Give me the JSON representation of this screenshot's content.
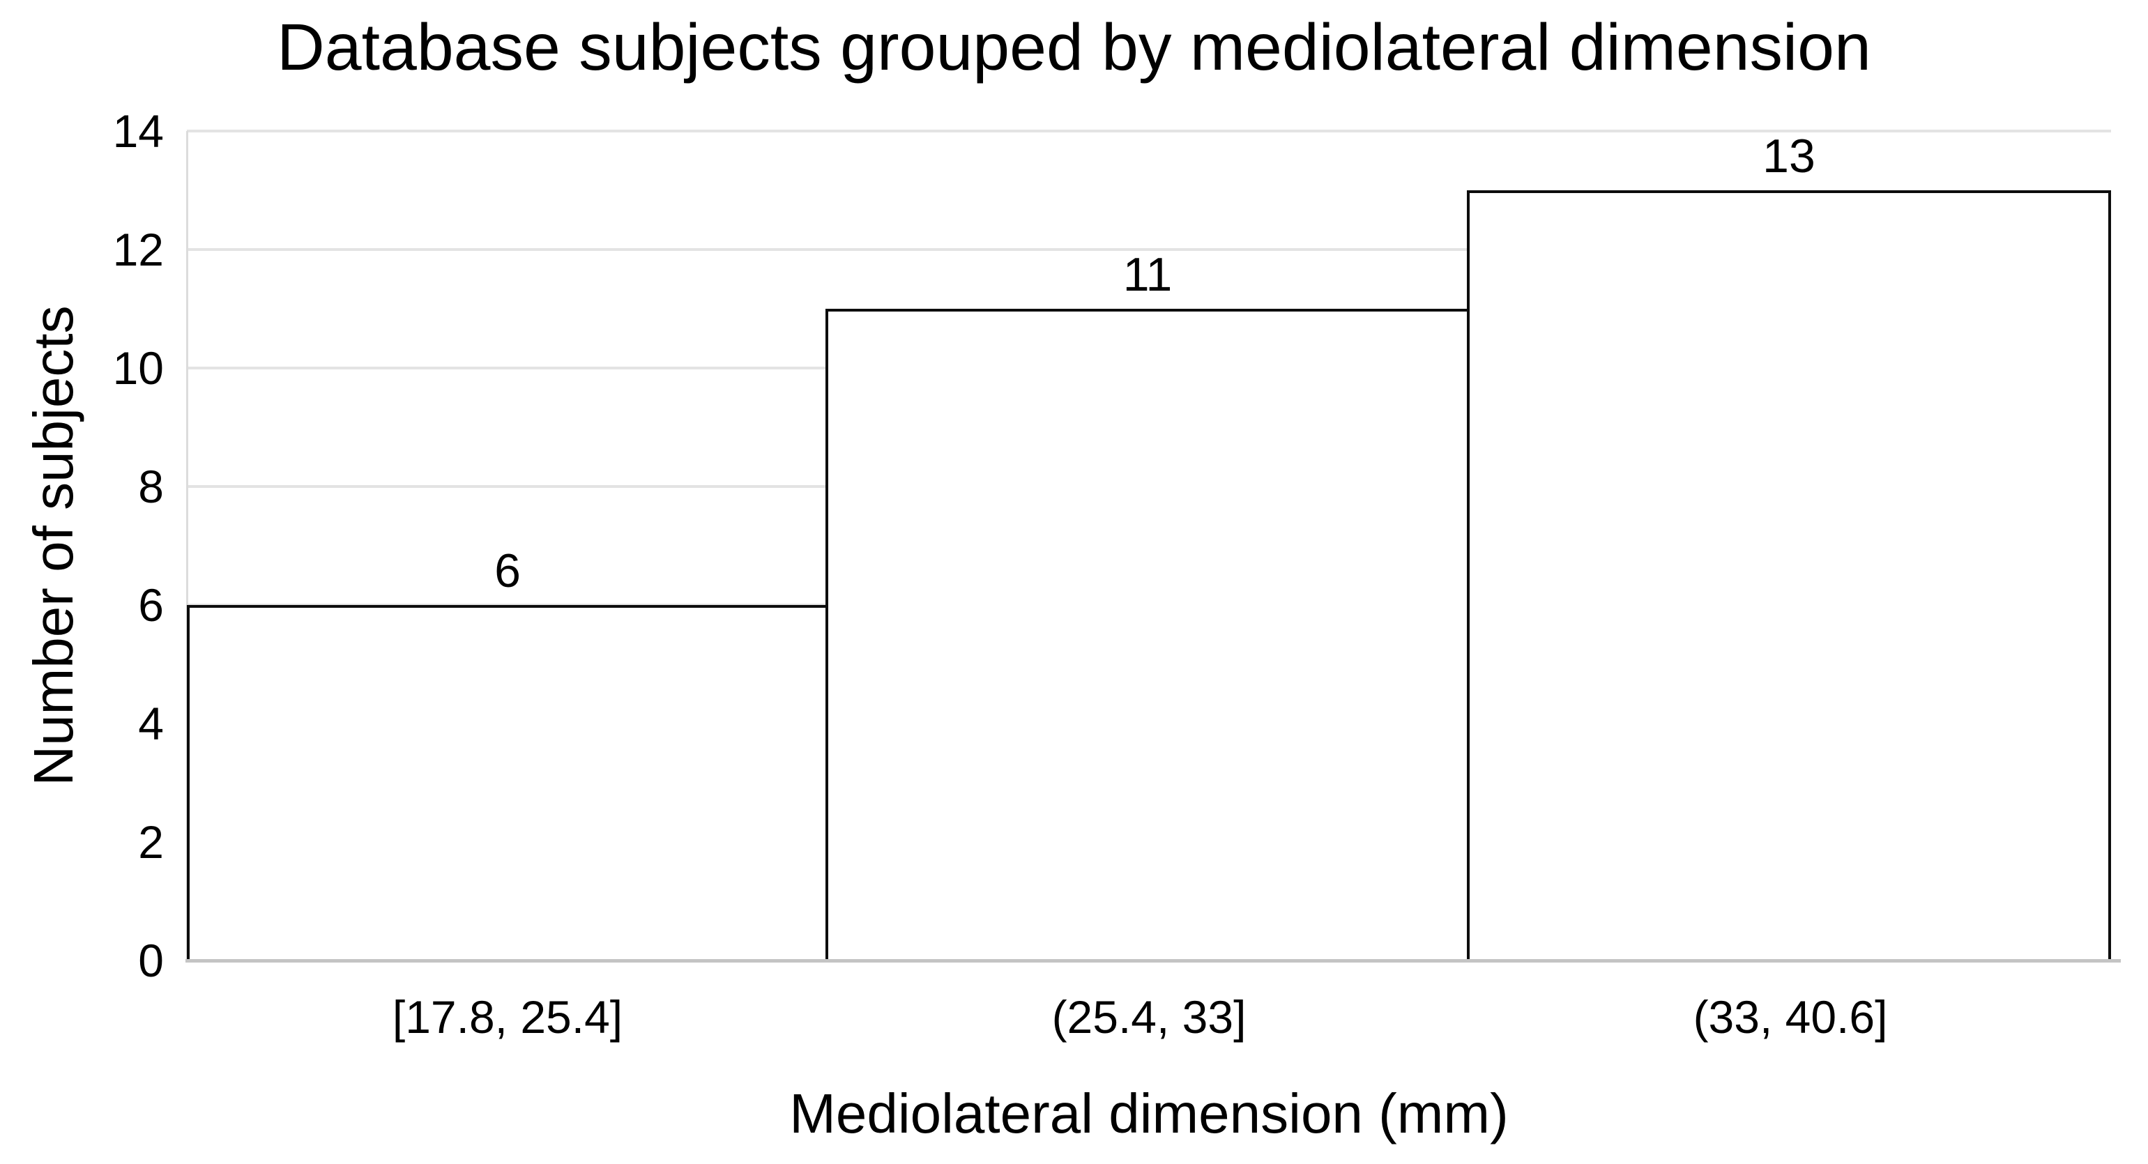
{
  "chart_data": {
    "type": "bar",
    "style": "histogram",
    "title": "Database subjects grouped by mediolateral dimension",
    "xlabel": "Mediolateral dimension (mm)",
    "ylabel": "Number of subjects",
    "categories": [
      "[17.8, 25.4]",
      "(25.4, 33]",
      "(33, 40.6]"
    ],
    "values": [
      6,
      11,
      13
    ],
    "data_labels": [
      "6",
      "11",
      "13"
    ],
    "ylim": [
      0,
      14
    ],
    "yticks": [
      0,
      2,
      4,
      6,
      8,
      10,
      12,
      14
    ],
    "ytick_labels": [
      "0",
      "2",
      "4",
      "6",
      "8",
      "10",
      "12",
      "14"
    ],
    "grid": "horizontal",
    "legend_position": "none",
    "colors": {
      "background": "#ffffff",
      "bar_fill": "#ffffff",
      "bar_border": "#0d0d0d",
      "gridline": "#e3e3e3",
      "x_axis_line": "#c4c4c4",
      "y_axis_line": "#dcdcdc",
      "text": "#000000"
    }
  }
}
